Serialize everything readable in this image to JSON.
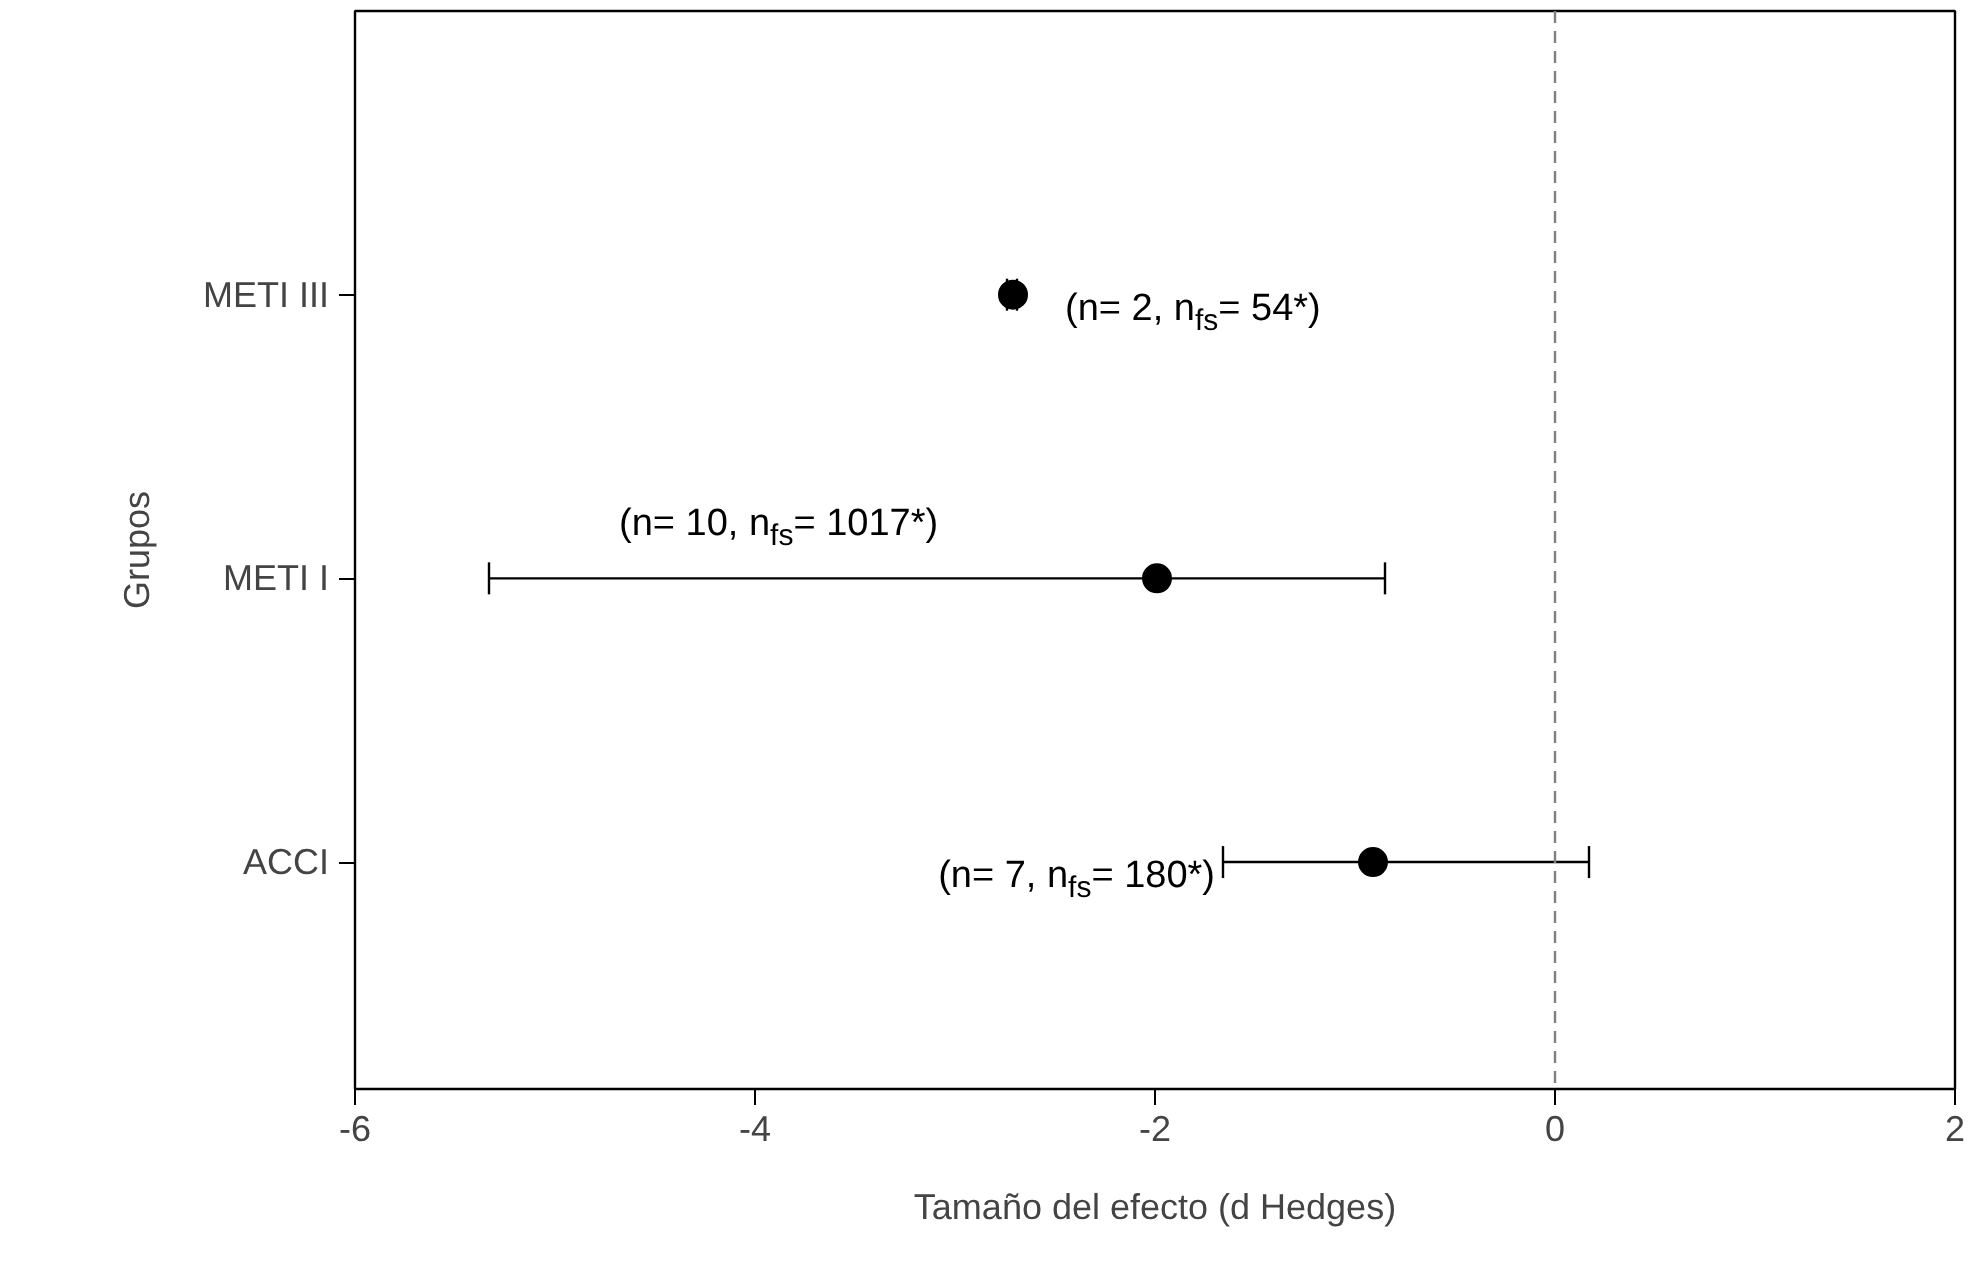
{
  "chart_data": {
    "type": "scatter",
    "orientation": "horizontal",
    "xlabel": "Tamaño del efecto (d Hedges)",
    "ylabel": "Grupos",
    "categories": [
      "METI III",
      "METI I",
      "ACCI"
    ],
    "values": [
      -2.71,
      -1.99,
      -0.91
    ],
    "errors": [
      [
        -2.74,
        -2.69
      ],
      [
        -5.33,
        -0.85
      ],
      [
        -1.66,
        0.17
      ]
    ],
    "color": "#000000",
    "marker": "circle",
    "xlim": [
      -6,
      2
    ],
    "xticks": [
      -6,
      -4,
      -2,
      0,
      2
    ],
    "grid": false,
    "ref_lines": [
      {
        "axis": "x",
        "value": 0,
        "label": null,
        "color": "#808080",
        "line_style": "dashed"
      }
    ],
    "annotations": [
      "(n= 2, n$_{fs}$= 54*)",
      "(n= 10, n$_{fs}$= 1017*)",
      "(n= 7, n$_{fs}$= 180*)"
    ]
  }
}
